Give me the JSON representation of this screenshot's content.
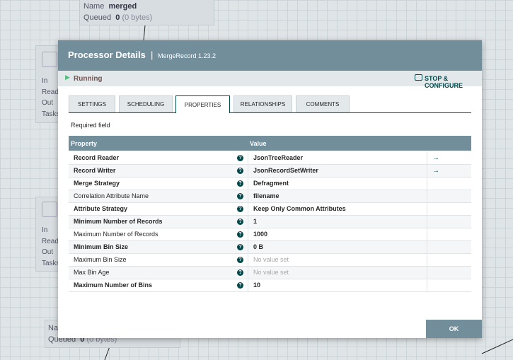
{
  "canvas": {
    "top_box": {
      "name_label": "Name",
      "name": "merged",
      "queued_label": "Queued",
      "queued": "0",
      "queued_bytes": "(0 bytes)"
    },
    "left_boxes": [
      {
        "stats": [
          "In",
          "Read/Write",
          "Out",
          "Tasks/Time"
        ]
      },
      {
        "stats": [
          "In",
          "Read/Write",
          "Out",
          "Tasks/Time"
        ]
      }
    ],
    "bottom_box": {
      "name_label": "Name",
      "queued_label": "Queued",
      "queued": "0",
      "queued_bytes": "(0 bytes)"
    }
  },
  "dialog": {
    "title": "Processor Details",
    "subtitle": "MergeRecord 1.23.2",
    "status": "Running",
    "action": "STOP & CONFIGURE",
    "tabs": [
      {
        "label": "SETTINGS",
        "active": false
      },
      {
        "label": "SCHEDULING",
        "active": false
      },
      {
        "label": "PROPERTIES",
        "active": true
      },
      {
        "label": "RELATIONSHIPS",
        "active": false
      },
      {
        "label": "COMMENTS",
        "active": false
      }
    ],
    "required_note": "Required field",
    "table": {
      "columns": [
        "Property",
        "Value"
      ],
      "rows": [
        {
          "property": "Record Reader",
          "value": "JsonTreeReader",
          "required": true,
          "placeholder": false,
          "link": true
        },
        {
          "property": "Record Writer",
          "value": "JsonRecordSetWriter",
          "required": true,
          "placeholder": false,
          "link": true
        },
        {
          "property": "Merge Strategy",
          "value": "Defragment",
          "required": true,
          "placeholder": false,
          "link": false
        },
        {
          "property": "Correlation Attribute Name",
          "value": "filename",
          "required": false,
          "placeholder": false,
          "link": false
        },
        {
          "property": "Attribute Strategy",
          "value": "Keep Only Common Attributes",
          "required": true,
          "placeholder": false,
          "link": false
        },
        {
          "property": "Minimum Number of Records",
          "value": "1",
          "required": true,
          "placeholder": false,
          "link": false
        },
        {
          "property": "Maximum Number of Records",
          "value": "1000",
          "required": false,
          "placeholder": false,
          "link": false
        },
        {
          "property": "Minimum Bin Size",
          "value": "0 B",
          "required": true,
          "placeholder": false,
          "link": false
        },
        {
          "property": "Maximum Bin Size",
          "value": "No value set",
          "required": false,
          "placeholder": true,
          "link": false
        },
        {
          "property": "Max Bin Age",
          "value": "No value set",
          "required": false,
          "placeholder": true,
          "link": false
        },
        {
          "property": "Maximum Number of Bins",
          "value": "10",
          "required": true,
          "placeholder": false,
          "link": false
        }
      ]
    },
    "ok": "OK"
  }
}
